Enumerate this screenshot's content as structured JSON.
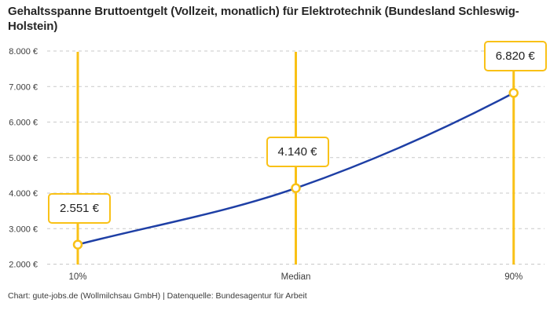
{
  "title": "Gehaltsspanne Bruttoentgelt (Vollzeit, monatlich) für Elektrotechnik (Bundesland Schleswig-Holstein)",
  "footer": "Chart: gute-jobs.de (Wollmilchsau GmbH) | Datenquelle: Bundesagentur für Arbeit",
  "colors": {
    "accent_yellow": "#f9c116",
    "line_blue": "#1e3fa5",
    "grid_gray": "#c9c9c9",
    "axis_text": "#3c3c3c",
    "title_text": "#262626",
    "box_text": "#222222",
    "background": "#ffffff"
  },
  "chart_data": {
    "type": "line",
    "title": "Gehaltsspanne Bruttoentgelt (Vollzeit, monatlich) für Elektrotechnik (Bundesland Schleswig-Holstein)",
    "categories": [
      "10%",
      "Median",
      "90%"
    ],
    "values": [
      2551,
      4140,
      6820
    ],
    "value_labels": [
      "2.551 €",
      "4.140 €",
      "6.820 €"
    ],
    "series": [
      {
        "name": "Bruttoentgelt",
        "values": [
          2551,
          4140,
          6820
        ]
      }
    ],
    "y_ticks": [
      2000,
      3000,
      4000,
      5000,
      6000,
      7000,
      8000
    ],
    "y_tick_labels": [
      "2.000 €",
      "3.000 €",
      "4.000 €",
      "5.000 €",
      "6.000 €",
      "7.000 €",
      "8.000 €"
    ],
    "ylim": [
      2000,
      8000
    ],
    "xlabel": "",
    "ylabel": "",
    "grid": "horizontal-dashed",
    "legend": "none",
    "markers": "open-circle",
    "vertical_marker_lines": true,
    "curve": "smooth-monotone",
    "source_note": "Chart: gute-jobs.de (Wollmilchsau GmbH) | Datenquelle: Bundesagentur für Arbeit"
  }
}
